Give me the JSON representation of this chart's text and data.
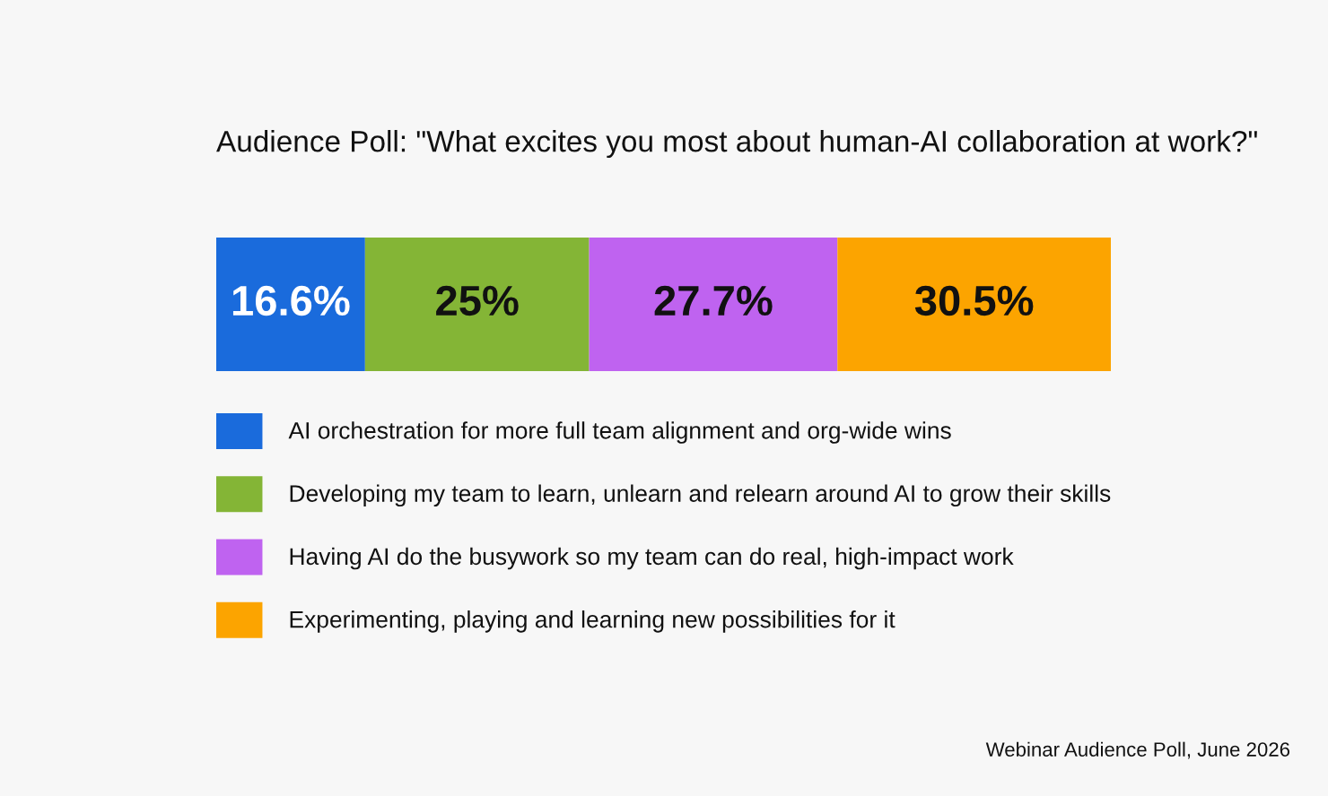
{
  "chart_data": {
    "type": "bar",
    "orientation": "horizontal",
    "stacked": true,
    "title": "Audience Poll: \"What excites you most about human-AI collaboration at work?\"",
    "categories": [
      null
    ],
    "series": [
      {
        "name": "AI orchestration for more full team alignment and org-wide wins",
        "color": "#1a6bdc",
        "values": [
          16.6
        ],
        "value_labels": [
          "16.6%"
        ]
      },
      {
        "name": "Developing my team to learn, unlearn and relearn around AI to grow their skills",
        "color": "#84b536",
        "values": [
          25
        ],
        "value_labels": [
          "25%"
        ]
      },
      {
        "name": "Having AI do the busywork so my team can do real, high-impact work",
        "color": "#bf63f0",
        "values": [
          27.7
        ],
        "value_labels": [
          "27.7%"
        ]
      },
      {
        "name": "Experimenting, playing and learning new possibilities for it",
        "color": "#fca400",
        "values": [
          30.5
        ],
        "value_labels": [
          "30.5%"
        ]
      }
    ],
    "legend": "bottom",
    "tick_labels": false,
    "annotations": [
      "Webinar Audience Poll, June 2026"
    ]
  }
}
